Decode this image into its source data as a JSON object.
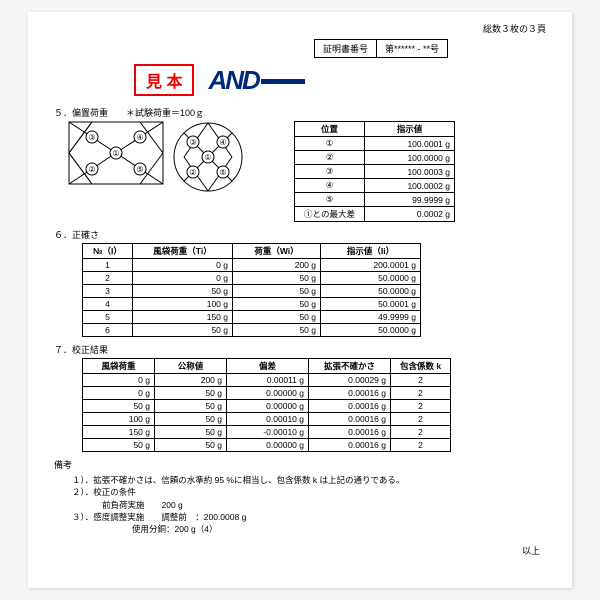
{
  "header": {
    "pageline": "総数３枚の３頁",
    "certlabel": "証明書番号",
    "certno": "第****** - **号",
    "mihon": "見 本",
    "logo": "AND"
  },
  "s5": {
    "title": "５．偏置荷重　　＊試験荷重＝100ｇ",
    "table": {
      "h1": "位置",
      "h2": "指示値",
      "rows": [
        [
          "①",
          "100.0001 g"
        ],
        [
          "②",
          "100.0000 g"
        ],
        [
          "③",
          "100.0003 g"
        ],
        [
          "④",
          "100.0002 g"
        ],
        [
          "⑤",
          "99.9999 g"
        ],
        [
          "①との最大差",
          "0.0002 g"
        ]
      ]
    }
  },
  "s6": {
    "title": "６．正確さ",
    "head": [
      "№（I）",
      "風袋荷重（Ti）",
      "荷重（Wi）",
      "指示値（Ii）"
    ],
    "rows": [
      [
        "1",
        "0 g",
        "200 g",
        "200.0001 g"
      ],
      [
        "2",
        "0 g",
        "50 g",
        "50.0000 g"
      ],
      [
        "3",
        "50 g",
        "50 g",
        "50.0000 g"
      ],
      [
        "4",
        "100 g",
        "50 g",
        "50.0001 g"
      ],
      [
        "5",
        "150 g",
        "50 g",
        "49.9999 g"
      ],
      [
        "6",
        "50 g",
        "50 g",
        "50.0000 g"
      ]
    ]
  },
  "s7": {
    "title": "７．校正結果",
    "head": [
      "風袋荷重",
      "公称値",
      "偏差",
      "拡張不確かさ",
      "包含係数 k"
    ],
    "rows": [
      [
        "0 g",
        "200 g",
        "0.00011 g",
        "0.00029 g",
        "2"
      ],
      [
        "0 g",
        "50 g",
        "0.00000 g",
        "0.00016 g",
        "2"
      ],
      [
        "50 g",
        "50 g",
        "0.00000 g",
        "0.00016 g",
        "2"
      ],
      [
        "100 g",
        "50 g",
        "0.00010 g",
        "0.00016 g",
        "2"
      ],
      [
        "150 g",
        "50 g",
        "-0.00010 g",
        "0.00016 g",
        "2"
      ],
      [
        "50 g",
        "50 g",
        "0.00000 g",
        "0.00016 g",
        "2"
      ]
    ]
  },
  "remarks": {
    "title": "備考",
    "l1": "１）．拡張不確かさは、信頼の水準約 95 %に相当し、包含係数 k は上記の通りである。",
    "l2": "２）．校正の条件",
    "l2a": "前負荷実施　　200 g",
    "l3": "３）．感度調整実施　　調整前　：200.0008 g",
    "l3a": "使用分銅：200 g（4）",
    "end": "以上"
  }
}
